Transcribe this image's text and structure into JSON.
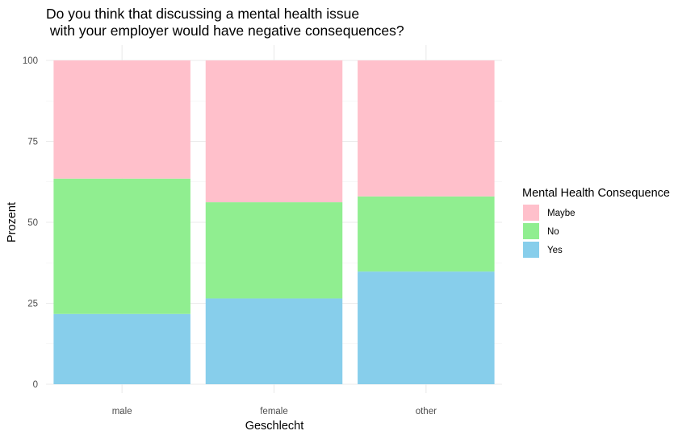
{
  "chart_data": {
    "type": "bar",
    "stacked": true,
    "title_lines": [
      "Do you think that discussing a mental health issue",
      " with your employer would have negative consequences?"
    ],
    "xlabel": "Geschlecht",
    "ylabel": "Prozent",
    "categories": [
      "male",
      "female",
      "other"
    ],
    "ylim": [
      0,
      100
    ],
    "yticks": [
      "0",
      "25",
      "50",
      "75",
      "100"
    ],
    "stack_order_bottom_to_top": [
      "Yes",
      "No",
      "Maybe"
    ],
    "series": [
      {
        "name": "Maybe",
        "color": "#FFC0CB",
        "values": [
          36.5,
          43.8,
          42.0
        ]
      },
      {
        "name": "No",
        "color": "#90EE90",
        "values": [
          41.8,
          29.7,
          23.2
        ]
      },
      {
        "name": "Yes",
        "color": "#87CEEB",
        "values": [
          21.7,
          26.5,
          34.8
        ]
      }
    ],
    "legend": {
      "title": "Mental Health Consequence",
      "position": "right",
      "entries": [
        "Maybe",
        "No",
        "Yes"
      ]
    },
    "grid": true,
    "theme": "minimal"
  }
}
